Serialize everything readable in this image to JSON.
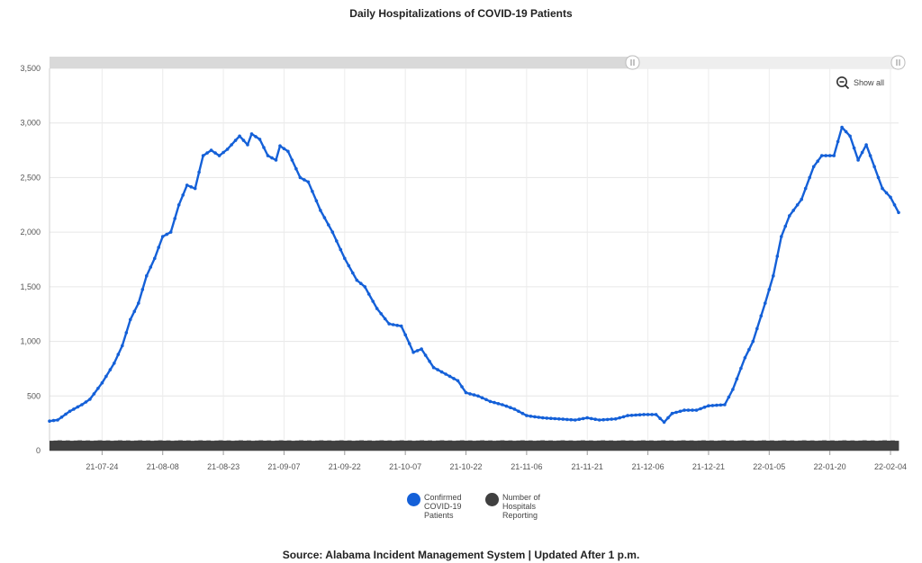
{
  "chart_data": {
    "type": "line",
    "title": "Daily Hospitalizations of COVID-19 Patients",
    "xlabel": "",
    "ylabel": "",
    "ylim": [
      0,
      3500
    ],
    "y_ticks": [
      "0",
      "500",
      "1,000",
      "1,500",
      "2,000",
      "2,500",
      "3,000",
      "3,500"
    ],
    "x_range": [
      "2021-07-11",
      "2022-02-06"
    ],
    "x_ticks": [
      "21-07-24",
      "21-08-08",
      "21-08-23",
      "21-09-07",
      "21-09-22",
      "21-10-07",
      "21-10-22",
      "21-11-06",
      "21-11-21",
      "21-12-06",
      "21-12-21",
      "22-01-05",
      "22-01-20",
      "22-02-04"
    ],
    "grid": true,
    "legend_position": "bottom",
    "series": [
      {
        "name": "Confirmed COVID-19 Patients",
        "type": "line",
        "color": "#1460D8",
        "points": [
          [
            "2021-07-11",
            270
          ],
          [
            "2021-07-13",
            280
          ],
          [
            "2021-07-16",
            360
          ],
          [
            "2021-07-19",
            420
          ],
          [
            "2021-07-21",
            470
          ],
          [
            "2021-07-24",
            620
          ],
          [
            "2021-07-27",
            800
          ],
          [
            "2021-07-29",
            960
          ],
          [
            "2021-07-31",
            1200
          ],
          [
            "2021-08-02",
            1350
          ],
          [
            "2021-08-04",
            1600
          ],
          [
            "2021-08-06",
            1760
          ],
          [
            "2021-08-08",
            1960
          ],
          [
            "2021-08-10",
            2000
          ],
          [
            "2021-08-12",
            2250
          ],
          [
            "2021-08-14",
            2430
          ],
          [
            "2021-08-16",
            2400
          ],
          [
            "2021-08-18",
            2700
          ],
          [
            "2021-08-20",
            2750
          ],
          [
            "2021-08-22",
            2700
          ],
          [
            "2021-08-24",
            2760
          ],
          [
            "2021-08-27",
            2880
          ],
          [
            "2021-08-29",
            2800
          ],
          [
            "2021-08-30",
            2900
          ],
          [
            "2021-09-01",
            2850
          ],
          [
            "2021-09-03",
            2700
          ],
          [
            "2021-09-05",
            2660
          ],
          [
            "2021-09-06",
            2790
          ],
          [
            "2021-09-08",
            2740
          ],
          [
            "2021-09-11",
            2500
          ],
          [
            "2021-09-13",
            2460
          ],
          [
            "2021-09-16",
            2200
          ],
          [
            "2021-09-19",
            2000
          ],
          [
            "2021-09-22",
            1760
          ],
          [
            "2021-09-25",
            1560
          ],
          [
            "2021-09-27",
            1500
          ],
          [
            "2021-09-30",
            1300
          ],
          [
            "2021-10-03",
            1160
          ],
          [
            "2021-10-06",
            1140
          ],
          [
            "2021-10-09",
            900
          ],
          [
            "2021-10-11",
            930
          ],
          [
            "2021-10-14",
            760
          ],
          [
            "2021-10-17",
            700
          ],
          [
            "2021-10-20",
            640
          ],
          [
            "2021-10-22",
            530
          ],
          [
            "2021-10-25",
            500
          ],
          [
            "2021-10-28",
            450
          ],
          [
            "2021-10-31",
            420
          ],
          [
            "2021-11-03",
            380
          ],
          [
            "2021-11-06",
            320
          ],
          [
            "2021-11-10",
            300
          ],
          [
            "2021-11-14",
            290
          ],
          [
            "2021-11-18",
            280
          ],
          [
            "2021-11-21",
            300
          ],
          [
            "2021-11-24",
            280
          ],
          [
            "2021-11-28",
            290
          ],
          [
            "2021-12-01",
            320
          ],
          [
            "2021-12-05",
            330
          ],
          [
            "2021-12-08",
            330
          ],
          [
            "2021-12-10",
            260
          ],
          [
            "2021-12-12",
            340
          ],
          [
            "2021-12-15",
            370
          ],
          [
            "2021-12-18",
            370
          ],
          [
            "2021-12-21",
            410
          ],
          [
            "2021-12-25",
            420
          ],
          [
            "2021-12-27",
            560
          ],
          [
            "2021-12-30",
            850
          ],
          [
            "2022-01-01",
            1000
          ],
          [
            "2022-01-04",
            1350
          ],
          [
            "2022-01-06",
            1600
          ],
          [
            "2022-01-08",
            1960
          ],
          [
            "2022-01-10",
            2150
          ],
          [
            "2022-01-13",
            2300
          ],
          [
            "2022-01-16",
            2600
          ],
          [
            "2022-01-18",
            2700
          ],
          [
            "2022-01-21",
            2700
          ],
          [
            "2022-01-23",
            2960
          ],
          [
            "2022-01-25",
            2880
          ],
          [
            "2022-01-27",
            2660
          ],
          [
            "2022-01-29",
            2800
          ],
          [
            "2022-01-31",
            2600
          ],
          [
            "2022-02-02",
            2400
          ],
          [
            "2022-02-04",
            2320
          ],
          [
            "2022-02-06",
            2180
          ]
        ]
      },
      {
        "name": "Number of Hospitals Reporting",
        "type": "bar",
        "color": "#404040",
        "constant_value": 92
      }
    ]
  },
  "legend": {
    "items": [
      {
        "label": "Confirmed COVID-19 Patients",
        "color": "#1460D8"
      },
      {
        "label": "Number of Hospitals Reporting",
        "color": "#404040"
      }
    ]
  },
  "controls": {
    "show_all_label": "Show all",
    "zoom_icon": "zoom-out-icon"
  },
  "source_text": "Source: Alabama Incident Management System | Updated After 1 p.m."
}
